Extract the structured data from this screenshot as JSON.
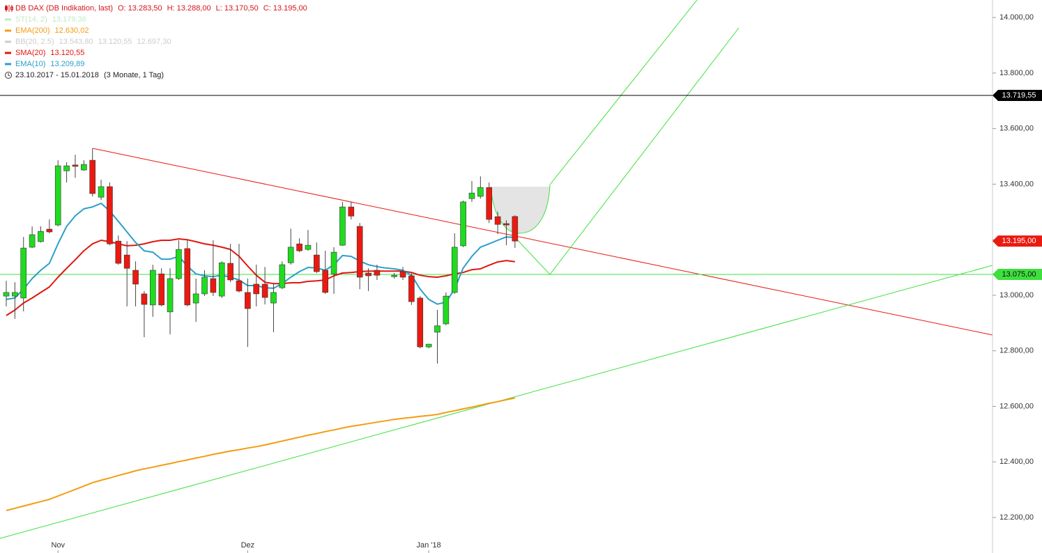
{
  "chart_data": {
    "type": "candlestick",
    "title": "DB DAX (DB Indikation, last)",
    "ohlc": [
      "O: 13.283,50",
      "H: 13.288,00",
      "L: 13.170,50",
      "C: 13.195,00"
    ],
    "title_color": "#d7141a",
    "date_range": "23.10.2017 - 15.01.2018",
    "period": "(3 Monate, 1 Tag)",
    "x": [
      null,
      null,
      null,
      null,
      null,
      null,
      "Nov",
      null,
      null,
      null,
      null,
      null,
      null,
      null,
      null,
      null,
      null,
      null,
      null,
      null,
      null,
      null,
      null,
      null,
      null,
      null,
      null,
      null,
      "Dez",
      null,
      null,
      null,
      null,
      null,
      null,
      null,
      null,
      null,
      null,
      null,
      null,
      null,
      null,
      null,
      null,
      null,
      null,
      null,
      null,
      "Jan '18",
      null,
      null,
      null,
      null,
      null,
      null,
      null,
      null,
      null,
      null
    ],
    "open": [
      12997,
      12997,
      12990,
      13173,
      13193,
      13238,
      13253,
      13448,
      13469,
      13451,
      13486,
      13353,
      13391,
      13195,
      13145,
      13090,
      13005,
      12965,
      13077,
      12940,
      13060,
      13168,
      12972,
      13005,
      13060,
      12997,
      13115,
      13052,
      13010,
      13040,
      13040,
      12972,
      13027,
      13117,
      13185,
      13165,
      13145,
      13090,
      13077,
      13180,
      13318,
      13248,
      13080,
      13090,
      null,
      13067,
      13085,
      13070,
      12990,
      12814,
      12867,
      12897,
      13010,
      13178,
      13348,
      13356,
      13388,
      13283,
      13258,
      13283.5
    ],
    "high": [
      13052,
      13047,
      13210,
      13248,
      13248,
      13273,
      13486,
      13479,
      13506,
      13486,
      13529,
      13416,
      13406,
      13215,
      13195,
      13122,
      13015,
      13110,
      13097,
      13097,
      13198,
      13198,
      13060,
      13090,
      13198,
      13122,
      13185,
      13185,
      13060,
      13110,
      13102,
      13040,
      13122,
      13240,
      13205,
      13235,
      13190,
      13160,
      13173,
      13336,
      13336,
      13260,
      13097,
      13110,
      null,
      13080,
      13102,
      13080,
      12997,
      12824,
      12947,
      13010,
      13223,
      13341,
      13411,
      13428,
      13406,
      13301,
      13270,
      13288
    ],
    "low": [
      12960,
      12915,
      12942,
      13170,
      13190,
      13223,
      13248,
      13406,
      13423,
      13448,
      13356,
      13343,
      13180,
      13110,
      12960,
      12960,
      12849,
      12922,
      12960,
      12859,
      13055,
      12960,
      12904,
      12997,
      12997,
      12990,
      13047,
      13010,
      12814,
      12960,
      12967,
      12867,
      13022,
      13110,
      13155,
      13160,
      13080,
      13005,
      13005,
      13178,
      13273,
      13022,
      13015,
      13055,
      null,
      13060,
      13055,
      12965,
      12809,
      12809,
      12754,
      12892,
      13005,
      13173,
      13336,
      13348,
      13260,
      13220,
      13180,
      13170.5
    ],
    "close": [
      13010,
      13010,
      13170,
      13218,
      13230,
      13228,
      13466,
      13466,
      13464,
      13471,
      13366,
      13391,
      13185,
      13115,
      13097,
      13040,
      12967,
      13090,
      12965,
      13060,
      13165,
      12965,
      13005,
      13065,
      13010,
      13117,
      13055,
      13015,
      12952,
      13005,
      12992,
      13010,
      13110,
      13173,
      13160,
      13180,
      13085,
      13010,
      13155,
      13318,
      13285,
      13065,
      13070,
      13072,
      null,
      13072,
      13065,
      12977,
      12814,
      12824,
      12890,
      12997,
      13173,
      13336,
      13368,
      13388,
      13273,
      13255,
      13253,
      13195
    ],
    "up_color": "#1fdc1f",
    "down_color": "#ea1a10",
    "series": [
      {
        "name": "ST(14, 2)",
        "color": "#c4e8c4",
        "legend_labels": [
          "13.179,36"
        ],
        "active": false
      },
      {
        "name": "EMA(200)",
        "color": "#f39c12",
        "legend_labels": [
          "12.630,02"
        ],
        "active": true,
        "values": [
          12225,
          12233,
          12241,
          12249,
          12257,
          12265,
          12277,
          12289,
          12301,
          12313,
          12325,
          12334,
          12342,
          12351,
          12359,
          12368,
          12375,
          12381,
          12388,
          12394,
          12401,
          12407,
          12414,
          12420,
          12427,
          12433,
          12439,
          12444,
          12450,
          12455,
          12461,
          12468,
          12475,
          12482,
          12489,
          12496,
          12502,
          12509,
          12515,
          12522,
          12528,
          12533,
          12538,
          12543,
          12548,
          12553,
          12557,
          12560,
          12564,
          12567,
          12571,
          12578,
          12584,
          12591,
          12597,
          12604,
          12611,
          12617,
          12624,
          12630
        ]
      },
      {
        "name": "BB(20, 2.5)",
        "color": "#cccccc",
        "legend_labels": [
          "13.543,80",
          "13.120,55",
          "12.697,30"
        ],
        "active": false
      },
      {
        "name": "SMA(20)",
        "color": "#e0160e",
        "legend_labels": [
          "13.120,55"
        ],
        "active": true,
        "values": [
          12927,
          12947,
          12972,
          12990,
          13010,
          13030,
          13065,
          13097,
          13128,
          13160,
          13185,
          13198,
          13193,
          13185,
          13178,
          13180,
          13185,
          13193,
          13198,
          13198,
          13203,
          13200,
          13193,
          13185,
          13180,
          13173,
          13165,
          13140,
          13105,
          13072,
          13047,
          13042,
          13042,
          13045,
          13045,
          13050,
          13052,
          13055,
          13070,
          13080,
          13082,
          13085,
          13087,
          13087,
          13087,
          13087,
          13087,
          13082,
          13072,
          13067,
          13065,
          13070,
          13077,
          13082,
          13092,
          13095,
          13108,
          13120,
          13125,
          13121
        ]
      },
      {
        "name": "EMA(10)",
        "color": "#2a9fc9",
        "legend_labels": [
          "13.209,89"
        ],
        "active": true,
        "values": [
          12985,
          12990,
          13022,
          13060,
          13090,
          13115,
          13185,
          13248,
          13286,
          13311,
          13318,
          13331,
          13303,
          13266,
          13228,
          13190,
          13160,
          13155,
          13130,
          13130,
          13140,
          13105,
          13077,
          13070,
          13067,
          13072,
          13065,
          13055,
          13035,
          13035,
          13027,
          13025,
          13042,
          13065,
          13085,
          13100,
          13098,
          13090,
          13110,
          13143,
          13140,
          13123,
          13110,
          13103,
          13098,
          13095,
          13090,
          13072,
          13022,
          12985,
          12968,
          12975,
          13022,
          13098,
          13140,
          13173,
          13185,
          13198,
          13210,
          13208
        ]
      }
    ],
    "ylim": [
      12072,
      14063
    ],
    "yticks": [
      {
        "value": 12200,
        "label": "12.200,00"
      },
      {
        "value": 12400,
        "label": "12.400,00"
      },
      {
        "value": 12600,
        "label": "12.600,00"
      },
      {
        "value": 12800,
        "label": "12.800,00"
      },
      {
        "value": 13000,
        "label": "13.000,00"
      },
      {
        "value": 13200,
        "label": "13.200,00"
      },
      {
        "value": 13400,
        "label": "13.400,00"
      },
      {
        "value": 13600,
        "label": "13.600,00"
      },
      {
        "value": 13800,
        "label": "13.800,00"
      },
      {
        "value": 14000,
        "label": "14.000,00"
      }
    ],
    "price_lines": [
      {
        "value": 13719.55,
        "label": "13.719,55",
        "color": "#000000",
        "text_color": "#ffffff",
        "line": true
      },
      {
        "value": 13195,
        "label": "13.195,00",
        "color": "#ea1a10",
        "text_color": "#ffffff",
        "line": false
      },
      {
        "value": 13075,
        "label": "13.075,00",
        "color": "#3ee03e",
        "text_color": "#111111",
        "line": true
      }
    ],
    "grid": false
  }
}
